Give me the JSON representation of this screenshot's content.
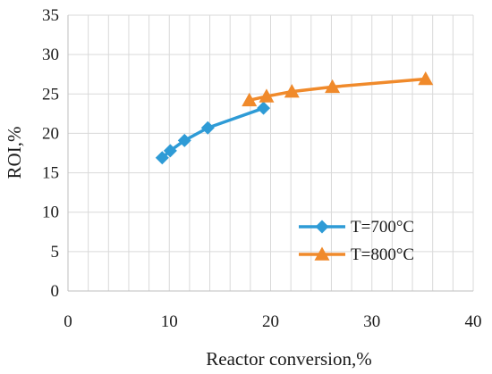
{
  "chart_data": {
    "type": "line",
    "title": "",
    "xlabel": "Reactor conversion,%",
    "ylabel": "ROI,%",
    "xlim": [
      0,
      40
    ],
    "ylim": [
      0,
      35
    ],
    "x_ticks": [
      "0",
      "10",
      "20",
      "30",
      "40"
    ],
    "y_ticks": [
      "0",
      "5",
      "10",
      "15",
      "20",
      "25",
      "30",
      "35"
    ],
    "grid": true,
    "legend_position": "bottom-right",
    "series": [
      {
        "name": "T=700°C",
        "color": "#2e9bd6",
        "marker": "diamond",
        "points": [
          {
            "x": 9.3,
            "y": 16.9
          },
          {
            "x": 10.1,
            "y": 17.8
          },
          {
            "x": 11.5,
            "y": 19.1
          },
          {
            "x": 13.8,
            "y": 20.7
          },
          {
            "x": 19.3,
            "y": 23.2
          }
        ]
      },
      {
        "name": "T=800°C",
        "color": "#f08a2b",
        "marker": "triangle",
        "points": [
          {
            "x": 17.9,
            "y": 24.2
          },
          {
            "x": 19.6,
            "y": 24.7
          },
          {
            "x": 22.1,
            "y": 25.3
          },
          {
            "x": 26.1,
            "y": 25.9
          },
          {
            "x": 35.3,
            "y": 26.9
          }
        ]
      }
    ]
  }
}
